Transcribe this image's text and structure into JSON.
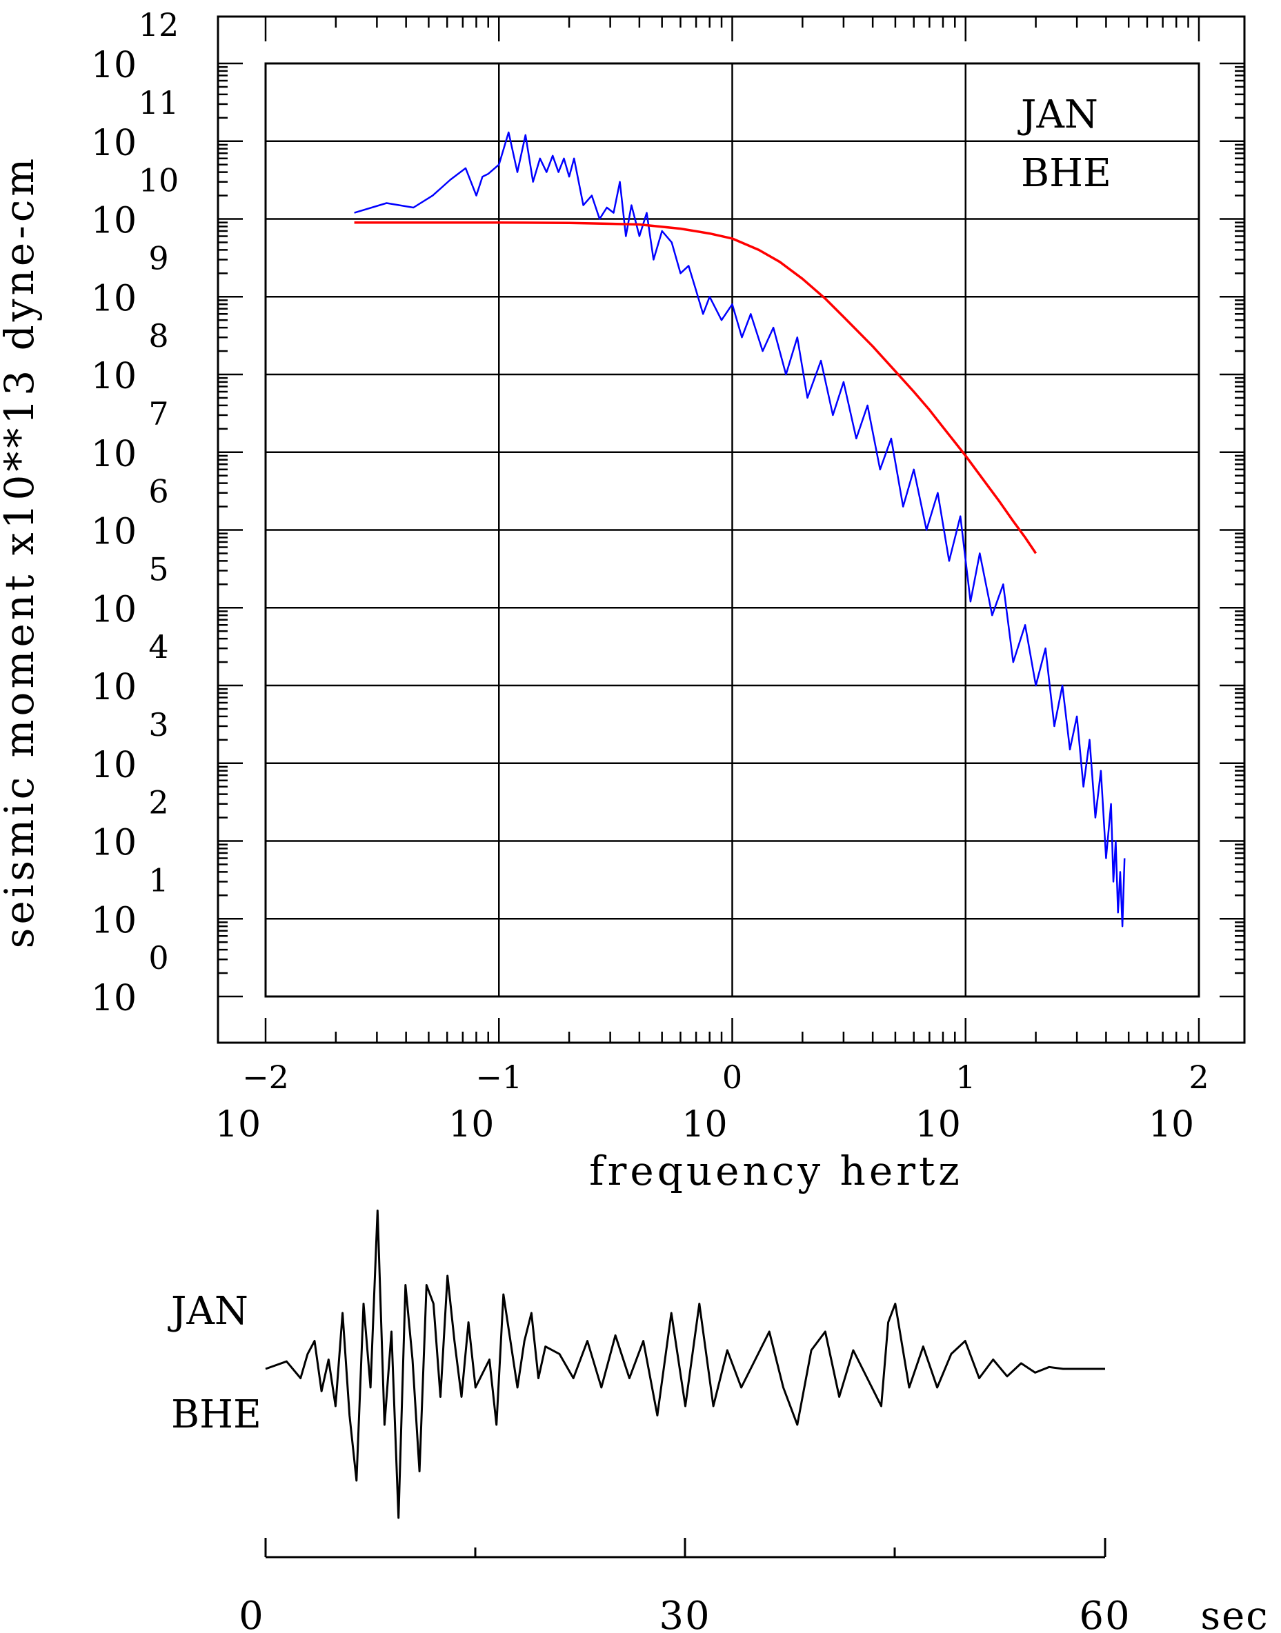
{
  "chart_data": [
    {
      "type": "line",
      "title": "",
      "xlabel": "frequency  hertz",
      "ylabel": "seismic moment x10**13 dyne-cm",
      "x_scale": "log",
      "y_scale": "log",
      "xlim": [
        0.01,
        100
      ],
      "ylim": [
        1,
        1000000000000
      ],
      "x_tick_base": "10",
      "x_tick_exponents": [
        "−2",
        "−1",
        "0",
        "1",
        "2"
      ],
      "y_tick_base": "10",
      "y_tick_exponents": [
        "0",
        "1",
        "2",
        "3",
        "4",
        "5",
        "6",
        "7",
        "8",
        "9",
        "10",
        "11",
        "12"
      ],
      "grid": true,
      "station_labels": [
        "JAN",
        "BHE"
      ],
      "series": [
        {
          "color": "#0000ff",
          "x": [
            0.024,
            0.033,
            0.043,
            0.052,
            0.062,
            0.072,
            0.08,
            0.085,
            0.09,
            0.1,
            0.11,
            0.12,
            0.13,
            0.14,
            0.15,
            0.16,
            0.17,
            0.18,
            0.19,
            0.2,
            0.21,
            0.23,
            0.25,
            0.27,
            0.29,
            0.31,
            0.33,
            0.35,
            0.37,
            0.4,
            0.43,
            0.46,
            0.5,
            0.55,
            0.6,
            0.65,
            0.7,
            0.75,
            0.8,
            0.9,
            1.0,
            1.1,
            1.2,
            1.35,
            1.5,
            1.7,
            1.9,
            2.1,
            2.4,
            2.7,
            3.0,
            3.4,
            3.8,
            4.3,
            4.8,
            5.4,
            6.0,
            6.8,
            7.6,
            8.5,
            9.5,
            10.5,
            11.5,
            13,
            14.5,
            16,
            18,
            20,
            22,
            24,
            26,
            28,
            30,
            32,
            34,
            36,
            38,
            40,
            42,
            43,
            44,
            45,
            46,
            47,
            48
          ],
          "y": [
            12000000000.0,
            16000000000.0,
            14000000000.0,
            20000000000.0,
            32000000000.0,
            45000000000.0,
            20000000000.0,
            35000000000.0,
            38000000000.0,
            50000000000.0,
            130000000000.0,
            40000000000.0,
            120000000000.0,
            30000000000.0,
            60000000000.0,
            40000000000.0,
            65000000000.0,
            40000000000.0,
            60000000000.0,
            35000000000.0,
            60000000000.0,
            15000000000.0,
            20000000000.0,
            10000000000.0,
            14000000000.0,
            12000000000.0,
            30000000000.0,
            6000000000.0,
            15000000000.0,
            6000000000.0,
            12000000000.0,
            3000000000.0,
            7000000000.0,
            5000000000.0,
            2000000000.0,
            2500000000.0,
            1200000000.0,
            600000000.0,
            1000000000.0,
            500000000.0,
            800000000.0,
            300000000.0,
            600000000.0,
            200000000.0,
            400000000.0,
            100000000.0,
            300000000.0,
            50000000.0,
            150000000.0,
            30000000.0,
            80000000.0,
            15000000.0,
            40000000.0,
            6000000.0,
            15000000.0,
            2000000.0,
            6000000.0,
            1000000.0,
            3000000.0,
            400000.0,
            1500000.0,
            120000.0,
            500000.0,
            80000.0,
            200000.0,
            20000.0,
            60000.0,
            10000.0,
            30000.0,
            3000.0,
            10000.0,
            1500.0,
            4000.0,
            500,
            2000,
            200,
            800,
            60,
            300,
            30,
            100,
            12,
            40,
            8,
            60
          ]
        },
        {
          "color": "#ff0000",
          "x": [
            0.024,
            0.05,
            0.1,
            0.2,
            0.4,
            0.6,
            0.8,
            1.0,
            1.3,
            1.6,
            2.0,
            2.5,
            3.0,
            4.0,
            5.0,
            6.0,
            7.0,
            8.0,
            10,
            12,
            14,
            16,
            18,
            20
          ],
          "y": [
            9000000000.0,
            9000000000.0,
            9000000000.0,
            8900000000.0,
            8500000000.0,
            7500000000.0,
            6500000000.0,
            5600000000.0,
            4000000000.0,
            2800000000.0,
            1700000000.0,
            950000000.0,
            550000000.0,
            230000000.0,
            110000000.0,
            60000000.0,
            35000000.0,
            21000000.0,
            9000000.0,
            4300000.0,
            2300000.0,
            1300000.0,
            800000.0,
            500000.0
          ]
        }
      ]
    },
    {
      "type": "line",
      "title": "",
      "xlabel": "sec",
      "xlim": [
        0,
        60
      ],
      "x_tick_labels": [
        "0",
        "30",
        "60"
      ],
      "station_labels": [
        "JAN",
        "BHE"
      ],
      "series": [
        {
          "color": "#000000",
          "x": [
            0,
            1.5,
            2.5,
            3,
            3.5,
            4,
            4.5,
            5,
            5.5,
            6,
            6.5,
            7,
            7.5,
            8,
            8.5,
            9,
            9.5,
            10,
            10.5,
            11,
            11.5,
            12,
            12.5,
            13,
            13.5,
            14,
            14.5,
            15,
            16,
            16.5,
            17,
            18,
            18.5,
            19,
            19.5,
            20,
            21,
            22,
            23,
            24,
            25,
            26,
            27,
            28,
            29,
            30,
            31,
            32,
            33,
            34,
            35,
            36,
            37,
            38,
            39,
            40,
            41,
            42,
            43,
            44,
            44.5,
            45,
            46,
            47,
            48,
            49,
            50,
            51,
            52,
            53,
            54,
            55,
            56,
            57,
            58,
            60
          ],
          "y": [
            0,
            0.04,
            -0.05,
            0.08,
            0.15,
            -0.12,
            0.05,
            -0.2,
            0.3,
            -0.25,
            -0.6,
            0.35,
            -0.1,
            0.85,
            -0.3,
            0.2,
            -0.8,
            0.45,
            0.05,
            -0.55,
            0.45,
            0.35,
            -0.15,
            0.5,
            0.15,
            -0.15,
            0.25,
            -0.1,
            0.05,
            -0.3,
            0.4,
            -0.1,
            0.15,
            0.3,
            -0.05,
            0.12,
            0.08,
            -0.05,
            0.15,
            -0.1,
            0.18,
            -0.05,
            0.15,
            -0.25,
            0.3,
            -0.2,
            0.35,
            -0.2,
            0.1,
            -0.1,
            0.05,
            0.2,
            -0.1,
            -0.3,
            0.1,
            0.2,
            -0.15,
            0.1,
            -0.05,
            -0.2,
            0.25,
            0.35,
            -0.1,
            0.12,
            -0.1,
            0.08,
            0.15,
            -0.05,
            0.05,
            -0.04,
            0.03,
            -0.02,
            0.01,
            0.0,
            0.0,
            0.0
          ]
        }
      ]
    }
  ]
}
